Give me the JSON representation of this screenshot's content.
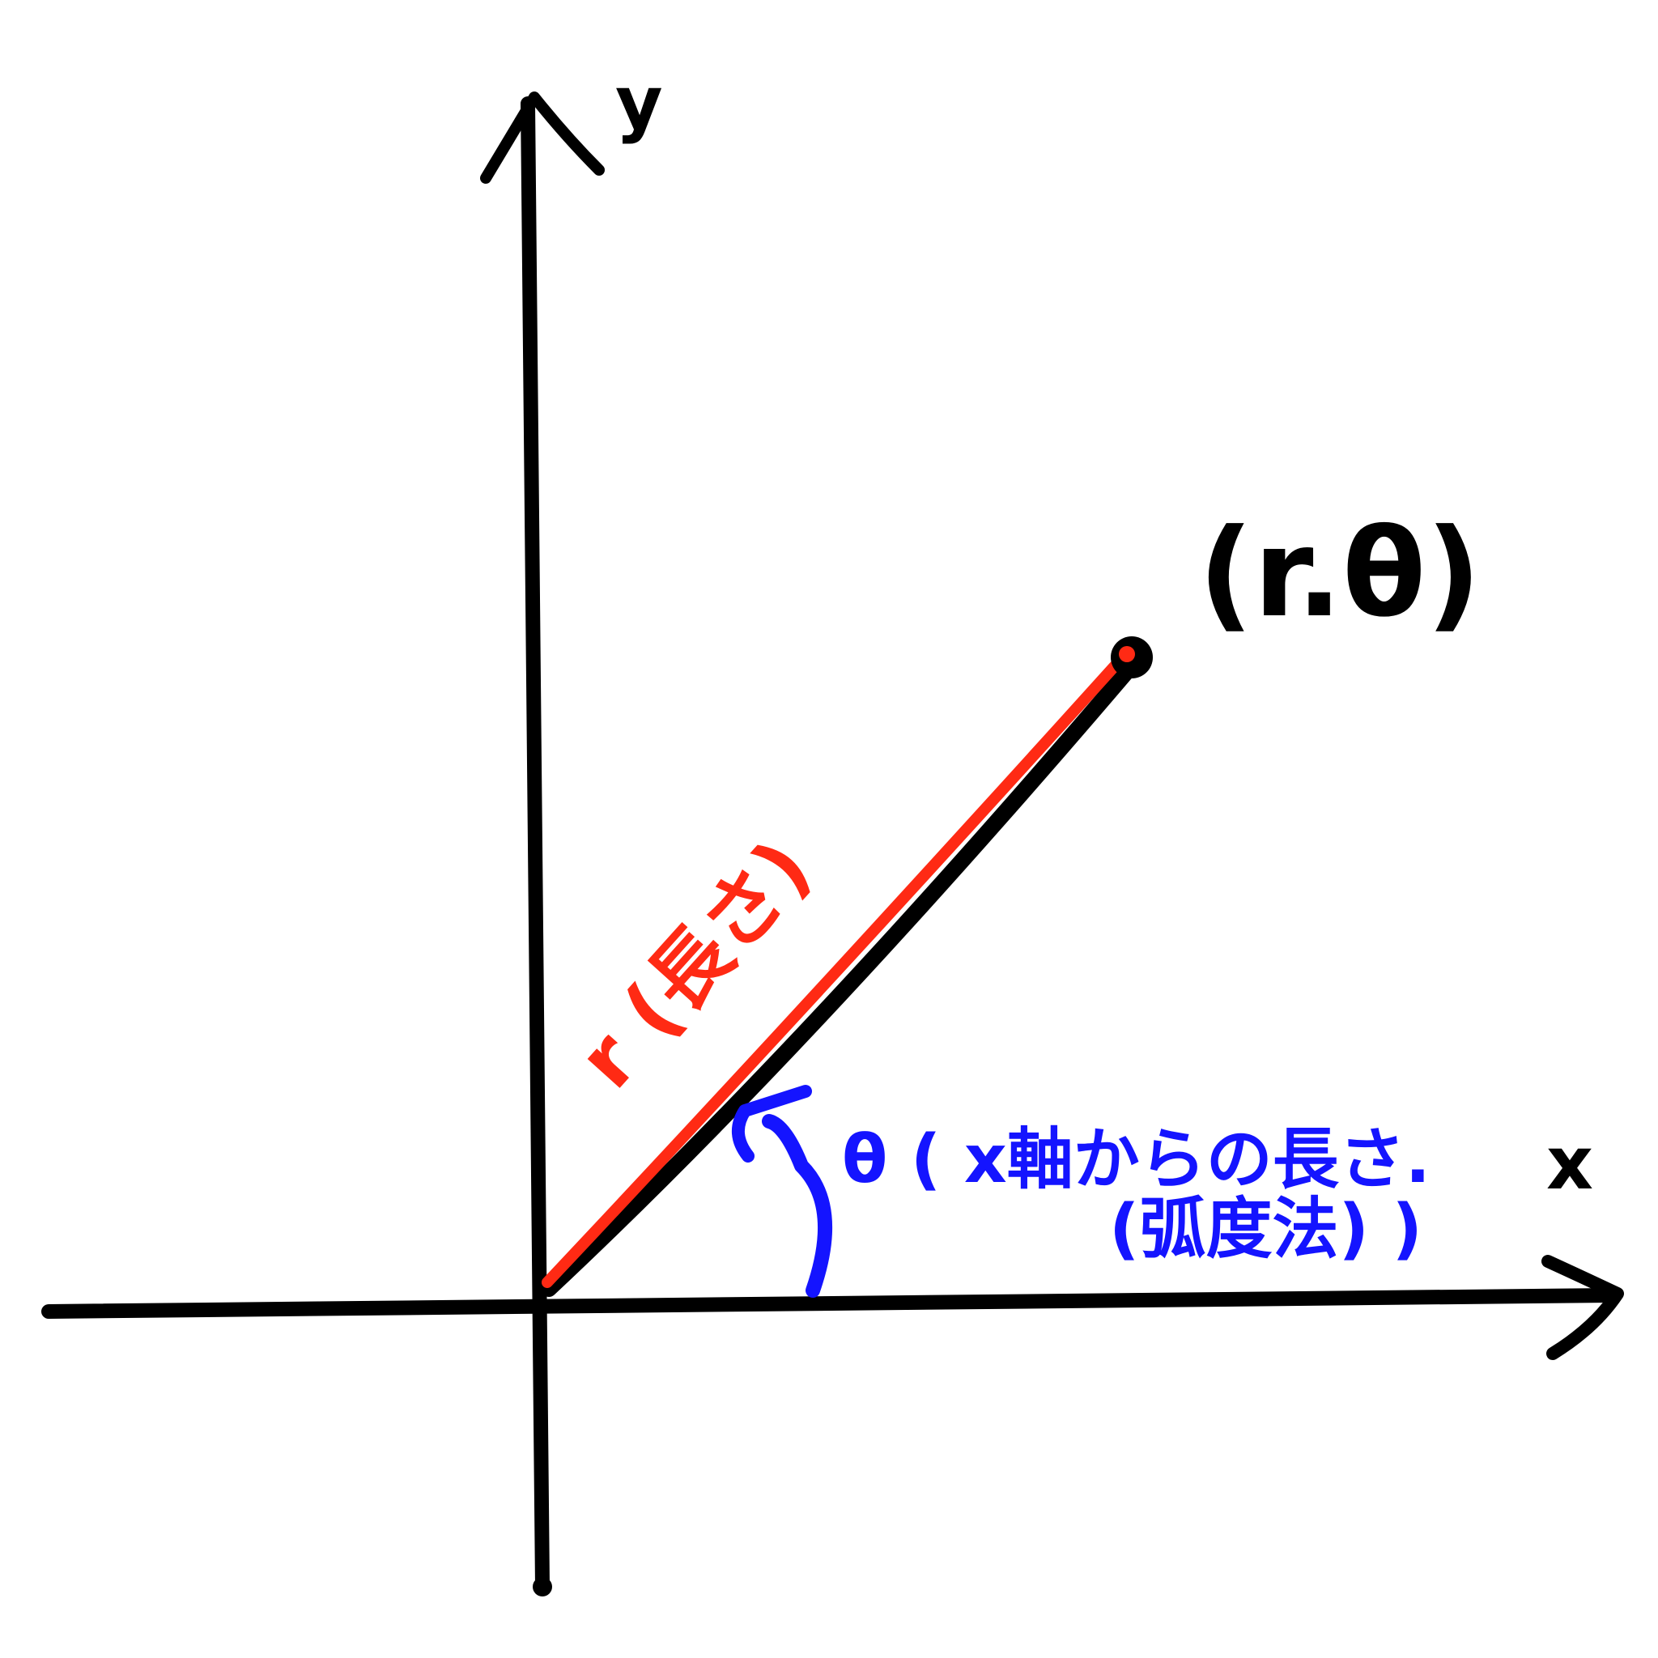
{
  "axes": {
    "x_label": "x",
    "y_label": "y"
  },
  "point": {
    "label": "(r.θ)"
  },
  "radius": {
    "label": "r (長さ)"
  },
  "angle": {
    "label_line1": "θ ( x軸からの長さ.",
    "label_line2": "(弧度法) )"
  },
  "colors": {
    "axes": "#000000",
    "radius": "#ff2a14",
    "angle": "#1414ff",
    "background": "#ffffff"
  }
}
